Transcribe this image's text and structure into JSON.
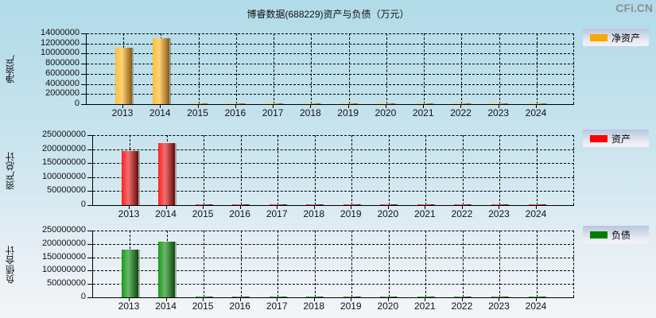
{
  "title": "博睿数据(688229)资产与负债（万元）",
  "brand": "CFi.CN",
  "chart_data": [
    {
      "type": "bar",
      "title": "博睿数据(688229)资产与负债（万元）",
      "ylabel": "净资产",
      "legend": "净资产",
      "color": "#FFA500",
      "categories": [
        "2013",
        "2014",
        "2015",
        "2016",
        "2017",
        "2018",
        "2019",
        "2020",
        "2021",
        "2022",
        "2023",
        "2024"
      ],
      "values": [
        11100000,
        13000000,
        0,
        0,
        0,
        0,
        0,
        0,
        0,
        0,
        0,
        0
      ],
      "ylim": [
        0,
        14000000
      ],
      "yticks": [
        "14000000",
        "12000000",
        "10000000",
        "8000000",
        "6000000",
        "4000000",
        "2000000",
        "0"
      ],
      "grid": true
    },
    {
      "type": "bar",
      "ylabel": "资产总计",
      "legend": "资产",
      "color": "#FF0000",
      "categories": [
        "2013",
        "2014",
        "2015",
        "2016",
        "2017",
        "2018",
        "2019",
        "2020",
        "2021",
        "2022",
        "2023",
        "2024"
      ],
      "values": [
        192000000,
        221000000,
        0,
        0,
        0,
        0,
        0,
        0,
        0,
        0,
        0,
        0
      ],
      "ylim": [
        0,
        250000000
      ],
      "yticks": [
        "250000000",
        "200000000",
        "150000000",
        "100000000",
        "50000000",
        "0"
      ],
      "grid": true
    },
    {
      "type": "bar",
      "ylabel": "负债合计",
      "legend": "负债",
      "color": "#008000",
      "categories": [
        "2013",
        "2014",
        "2015",
        "2016",
        "2017",
        "2018",
        "2019",
        "2020",
        "2021",
        "2022",
        "2023",
        "2024"
      ],
      "values": [
        179000000,
        207000000,
        0,
        0,
        0,
        0,
        0,
        0,
        0,
        0,
        0,
        0
      ],
      "ylim": [
        0,
        250000000
      ],
      "yticks": [
        "250000000",
        "200000000",
        "150000000",
        "100000000",
        "50000000",
        "0"
      ],
      "grid": true
    }
  ]
}
